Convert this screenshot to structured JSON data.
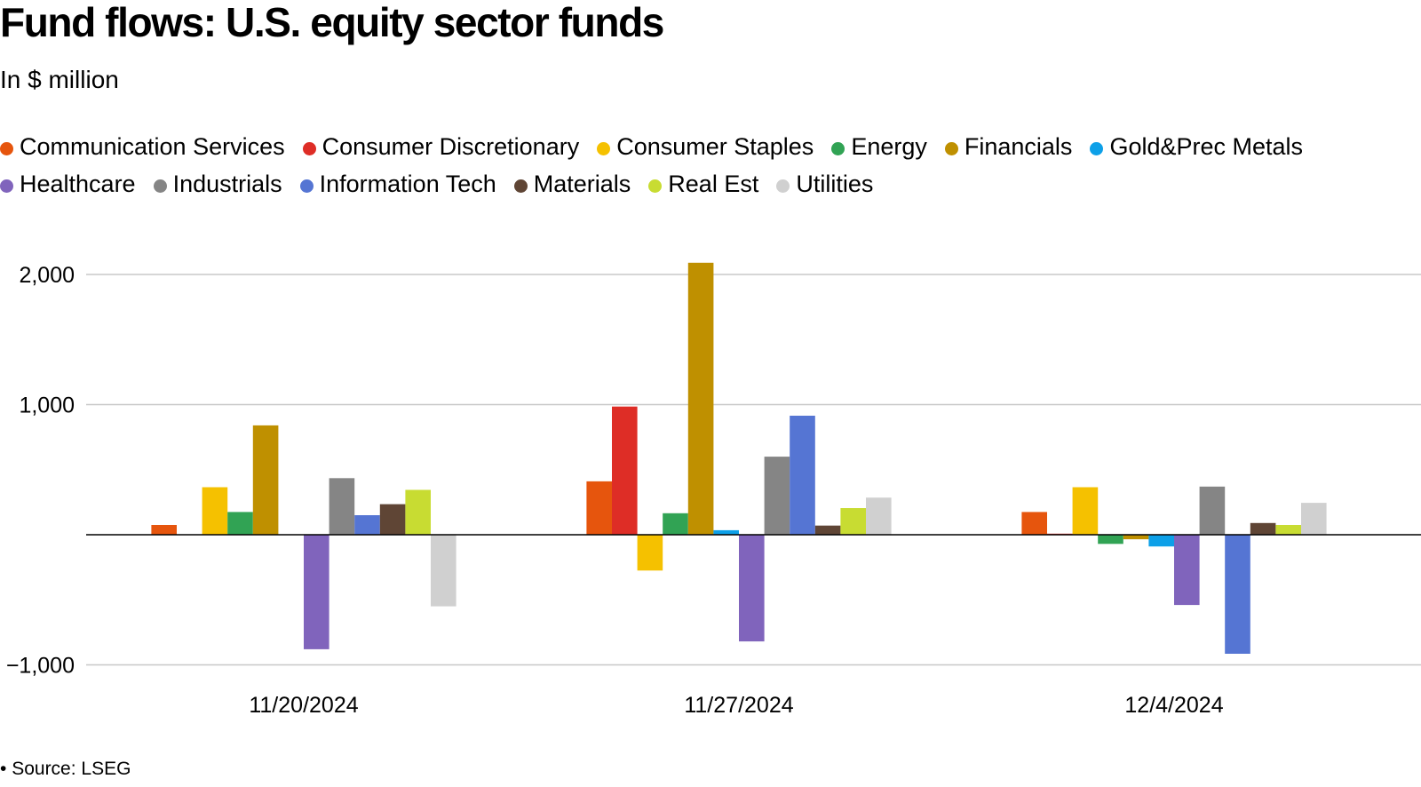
{
  "title": "Fund flows: U.S. equity sector funds",
  "subtitle": "In $ million",
  "source": "Source: LSEG",
  "source_bullet": "•",
  "chart_data": {
    "type": "bar",
    "title": "Fund flows: U.S. equity sector funds",
    "subtitle": "In $ million",
    "categories": [
      "11/20/2024",
      "11/27/2024",
      "12/4/2024"
    ],
    "yticks": [
      -1000,
      1000,
      2000
    ],
    "ytick_labels": [
      "−1,000",
      "1,000",
      "2,000"
    ],
    "ylim": [
      -1100,
      2230
    ],
    "grid": true,
    "legend_position": "top",
    "series": [
      {
        "name": "Communication Services",
        "color": "#e6550d",
        "values": [
          75,
          410,
          175
        ]
      },
      {
        "name": "Consumer Discretionary",
        "color": "#de2d26",
        "values": [
          0,
          985,
          8
        ]
      },
      {
        "name": "Consumer Staples",
        "color": "#f5c100",
        "values": [
          365,
          -275,
          365
        ]
      },
      {
        "name": "Energy",
        "color": "#31a354",
        "values": [
          175,
          165,
          -70
        ]
      },
      {
        "name": "Financials",
        "color": "#bf9000",
        "values": [
          840,
          2090,
          -35
        ]
      },
      {
        "name": "Gold&Prec Metals",
        "color": "#0da0e8",
        "values": [
          0,
          35,
          -90
        ]
      },
      {
        "name": "Healthcare",
        "color": "#8064bc",
        "values": [
          -880,
          -820,
          -540
        ]
      },
      {
        "name": "Industrials",
        "color": "#858585",
        "values": [
          435,
          600,
          370
        ]
      },
      {
        "name": "Information Tech",
        "color": "#5575d3",
        "values": [
          150,
          915,
          -915
        ]
      },
      {
        "name": "Materials",
        "color": "#5f4535",
        "values": [
          235,
          70,
          90
        ]
      },
      {
        "name": "Real Est",
        "color": "#c8dc32",
        "values": [
          345,
          205,
          75
        ]
      },
      {
        "name": "Utilities",
        "color": "#d0d0d0",
        "values": [
          -550,
          285,
          245
        ]
      }
    ]
  }
}
